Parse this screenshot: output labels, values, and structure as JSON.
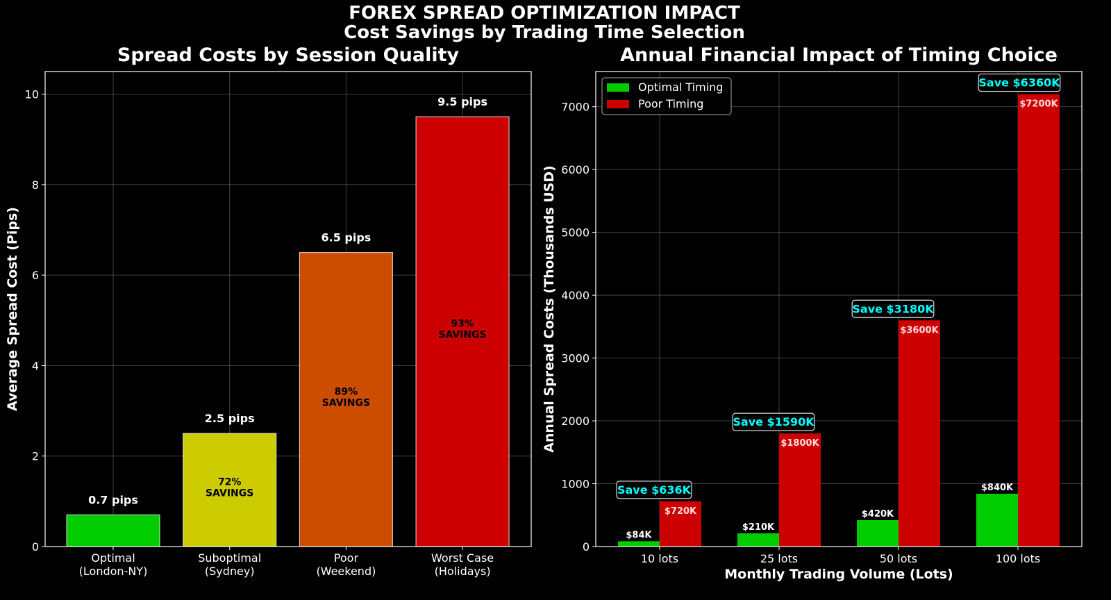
{
  "suptitle": [
    "FOREX SPREAD OPTIMIZATION IMPACT",
    "Cost Savings by Trading Time Selection"
  ],
  "chart_data": [
    {
      "type": "bar",
      "title": "Spread Costs by Session Quality",
      "xlabel": "",
      "ylabel": "Average Spread Cost (Pips)",
      "categories": [
        [
          "Optimal",
          "(London-NY)"
        ],
        [
          "Suboptimal",
          "(Sydney)"
        ],
        [
          "Poor",
          "(Weekend)"
        ],
        [
          "Worst Case",
          "(Holidays)"
        ]
      ],
      "values": [
        0.7,
        2.5,
        6.5,
        9.5
      ],
      "colors": [
        "#00cc00",
        "#cccc00",
        "#cc4c00",
        "#cc0000"
      ],
      "data_labels": [
        "0.7 pips",
        "2.5 pips",
        "6.5 pips",
        "9.5 pips"
      ],
      "inner_labels": [
        null,
        [
          "72%",
          "SAVINGS"
        ],
        [
          "89%",
          "SAVINGS"
        ],
        [
          "93%",
          "SAVINGS"
        ]
      ],
      "ylim": [
        0,
        10.5
      ],
      "yticks": [
        0,
        2,
        4,
        6,
        8,
        10
      ],
      "grid": true
    },
    {
      "type": "bar",
      "title": "Annual Financial Impact of Timing Choice",
      "xlabel": "Monthly Trading Volume (Lots)",
      "ylabel": "Annual Spread Costs (Thousands USD)",
      "categories": [
        "10 lots",
        "25 lots",
        "50 lots",
        "100 lots"
      ],
      "series": [
        {
          "name": "Optimal Timing",
          "color": "#00cc00",
          "values": [
            84,
            210,
            420,
            840
          ],
          "labels": [
            "$84K",
            "$210K",
            "$420K",
            "$840K"
          ]
        },
        {
          "name": "Poor Timing",
          "color": "#cc0000",
          "values": [
            720,
            1800,
            3600,
            7200
          ],
          "labels": [
            "$720K",
            "$1800K",
            "$3600K",
            "$7200K"
          ]
        }
      ],
      "annotations": [
        "Save $636K",
        "Save $1590K",
        "Save $3180K",
        "Save $6360K"
      ],
      "annotation_color": "#00ffff",
      "ylim": [
        0,
        7560
      ],
      "yticks": [
        0,
        1000,
        2000,
        3000,
        4000,
        5000,
        6000,
        7000
      ],
      "grid": true,
      "legend": "top-left"
    }
  ]
}
